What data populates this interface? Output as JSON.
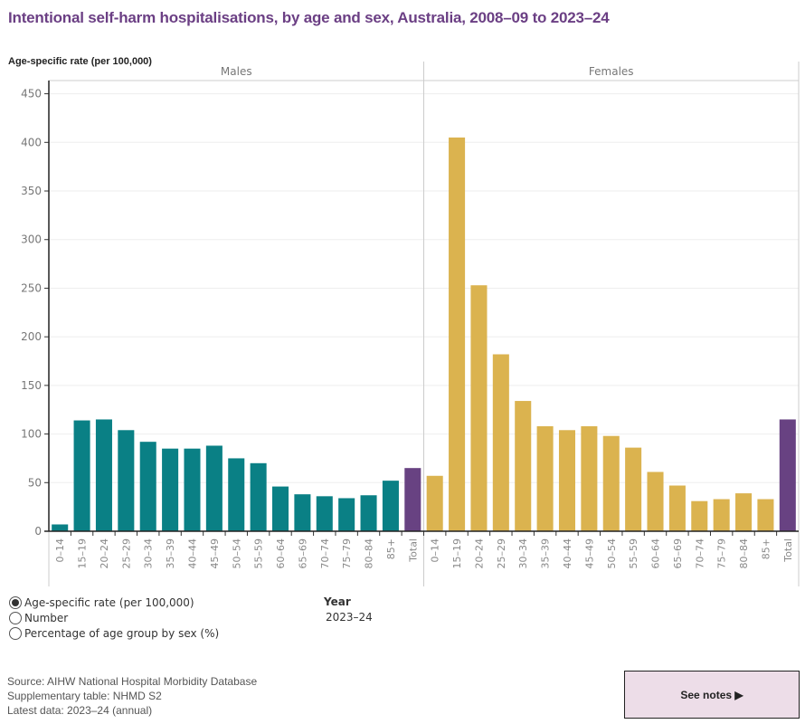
{
  "title": "Intentional self-harm hospitalisations, by age and sex, Australia, 2008–09 to 2023–24",
  "chart_data": {
    "type": "bar",
    "title": "Intentional self-harm hospitalisations, by age and sex, Australia, 2008–09 to 2023–24",
    "ylabel": "Age-specific rate (per 100,000)",
    "xlabel": "",
    "ylim": [
      0,
      460
    ],
    "yticks": [
      0,
      50,
      100,
      150,
      200,
      250,
      300,
      350,
      400,
      450
    ],
    "grid": true,
    "categories": [
      "0–14",
      "15–19",
      "20–24",
      "25–29",
      "30–34",
      "35–39",
      "40–44",
      "45–49",
      "50–54",
      "55–59",
      "60–64",
      "65–69",
      "70–74",
      "75–79",
      "80–84",
      "85+",
      "Total"
    ],
    "panels": [
      {
        "name": "Males",
        "color": "#0a8085",
        "total_color": "#684282",
        "values": [
          7,
          114,
          115,
          104,
          92,
          85,
          85,
          88,
          75,
          70,
          46,
          38,
          36,
          34,
          37,
          52,
          65
        ]
      },
      {
        "name": "Females",
        "color": "#dbb34f",
        "total_color": "#684282",
        "values": [
          57,
          405,
          253,
          182,
          134,
          108,
          104,
          108,
          98,
          86,
          61,
          47,
          31,
          33,
          39,
          33,
          115
        ]
      }
    ]
  },
  "controls": {
    "measure_options": [
      {
        "label": "Age-specific rate (per 100,000)",
        "selected": true
      },
      {
        "label": "Number",
        "selected": false
      },
      {
        "label": "Percentage of age group by sex (%)",
        "selected": false
      }
    ],
    "year_label": "Year",
    "year_value": "2023–24"
  },
  "footer": {
    "source": "Source: AIHW National Hospital Morbidity Database",
    "supplementary": "Supplementary table: NHMD S2",
    "latest": "Latest data: 2023–24 (annual)",
    "notes_button": "See notes ▶"
  }
}
